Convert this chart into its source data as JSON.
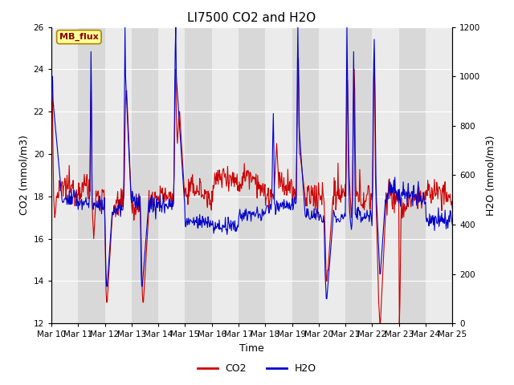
{
  "title": "LI7500 CO2 and H2O",
  "xlabel": "Time",
  "ylabel_left": "CO2 (mmol/m3)",
  "ylabel_right": "H2O (mmol/m3)",
  "text_label": "MB_flux",
  "co2_ylim": [
    12,
    26
  ],
  "h2o_ylim": [
    0,
    1200
  ],
  "x_tick_labels": [
    "Mar 10",
    "Mar 11",
    "Mar 12",
    "Mar 13",
    "Mar 14",
    "Mar 15",
    "Mar 16",
    "Mar 17",
    "Mar 18",
    "Mar 19",
    "Mar 20",
    "Mar 21",
    "Mar 22",
    "Mar 23",
    "Mar 24",
    "Mar 25"
  ],
  "co2_color": "#cc0000",
  "h2o_color": "#0000cc",
  "bg_color": "#ffffff",
  "stripe_light": "#ebebeb",
  "stripe_dark": "#d8d8d8",
  "grid_color": "#ffffff",
  "legend_co2": "CO2",
  "legend_h2o": "H2O",
  "title_fontsize": 11,
  "axis_label_fontsize": 9,
  "tick_fontsize": 7.5,
  "n_days": 15,
  "n_per_day": 48
}
